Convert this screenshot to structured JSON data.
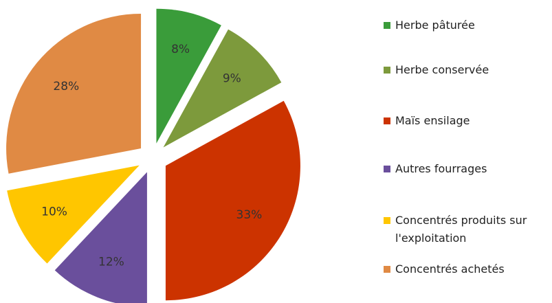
{
  "chart_data": {
    "type": "pie",
    "categories": [
      "Herbe pâturée",
      "Herbe conservée",
      "Maïs ensilage",
      "Autres fourrages",
      "Concentrés produits sur l'exploitation",
      "Concentrés achetés"
    ],
    "values": [
      8,
      9,
      33,
      12,
      10,
      28
    ],
    "value_labels": [
      "8%",
      "9%",
      "33%",
      "12%",
      "10%",
      "28%"
    ],
    "colors": [
      "#3a9c3a",
      "#7d9a3c",
      "#cc3300",
      "#6a4f9c",
      "#ffc600",
      "#e08a44"
    ],
    "legend": "right"
  }
}
